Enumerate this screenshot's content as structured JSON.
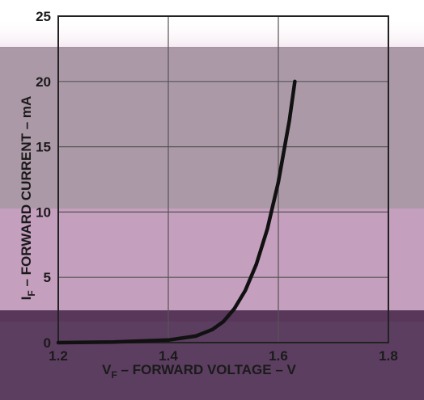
{
  "chart_data": {
    "type": "line",
    "title": "",
    "xlabel": "V",
    "xlabel_sub": "F",
    "xlabel_rest": " – V",
    "xlabel_main": "F",
    "xlabel_tail": " – FORWARD VOLTAGE – V",
    "ylabel_main": "I",
    "ylabel_sub": "F",
    "ylabel_tail": " – FORWARD CURRENT – mA",
    "xlim": [
      1.2,
      1.8
    ],
    "ylim": [
      0,
      25
    ],
    "x_ticks": [
      "1.2",
      "1.4",
      "1.6",
      "1.8"
    ],
    "y_ticks": [
      "0",
      "5",
      "10",
      "15",
      "20",
      "25"
    ],
    "grid": true,
    "series": [
      {
        "x": [
          1.2,
          1.3,
          1.4,
          1.45,
          1.48,
          1.5,
          1.52,
          1.54,
          1.56,
          1.58,
          1.6,
          1.62,
          1.63
        ],
        "y": [
          0,
          0.05,
          0.2,
          0.5,
          1.0,
          1.6,
          2.6,
          4.0,
          6.0,
          8.7,
          12.3,
          17.0,
          20.0
        ],
        "color": "#111111"
      }
    ]
  },
  "overlay": {
    "bands": [
      {
        "color": "#ffffff",
        "opacity": 0.0
      },
      {
        "color": "#8c7186",
        "opacity": 0.72
      },
      {
        "color": "#b27fa8",
        "opacity": 0.75
      },
      {
        "color": "#4e2e52",
        "opacity": 0.92
      }
    ]
  }
}
